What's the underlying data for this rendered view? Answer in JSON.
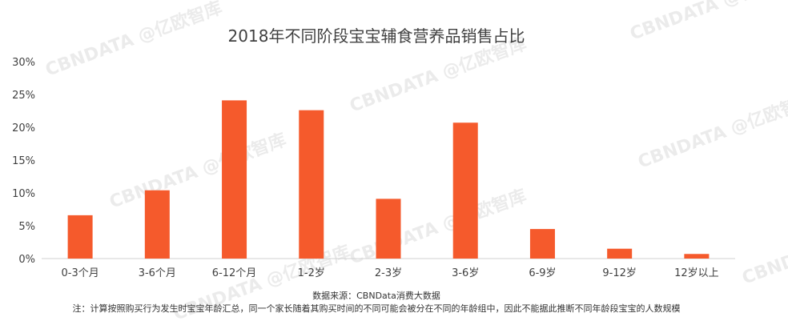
{
  "chart_data": {
    "type": "bar",
    "title": "2018年不同阶段宝宝辅食营养品销售占比",
    "categories": [
      "0-3个月",
      "3-6个月",
      "6-12个月",
      "1-2岁",
      "2-3岁",
      "3-6岁",
      "6-9岁",
      "9-12岁",
      "12岁以上"
    ],
    "values": [
      6.6,
      10.4,
      24.1,
      22.6,
      9.1,
      20.7,
      4.5,
      1.5,
      0.7
    ],
    "value_unit": "%",
    "ylim": [
      0,
      30
    ],
    "yticks": [
      "0%",
      "5%",
      "10%",
      "15%",
      "20%",
      "25%",
      "30%"
    ],
    "grid": false,
    "bar_color": "#f55a2c",
    "xlabel": "",
    "ylabel": ""
  },
  "footer": {
    "source": "数据来源：CBNData消费大数据",
    "note": "注：计算按照购买行为发生时宝宝年龄汇总，同一个家长随着其购买时间的不同可能会被分在不同的年龄组中，因此不能据此推断不同年龄段宝宝的人数规模"
  },
  "watermark": {
    "text": "CBNDATA @亿欧智库"
  }
}
